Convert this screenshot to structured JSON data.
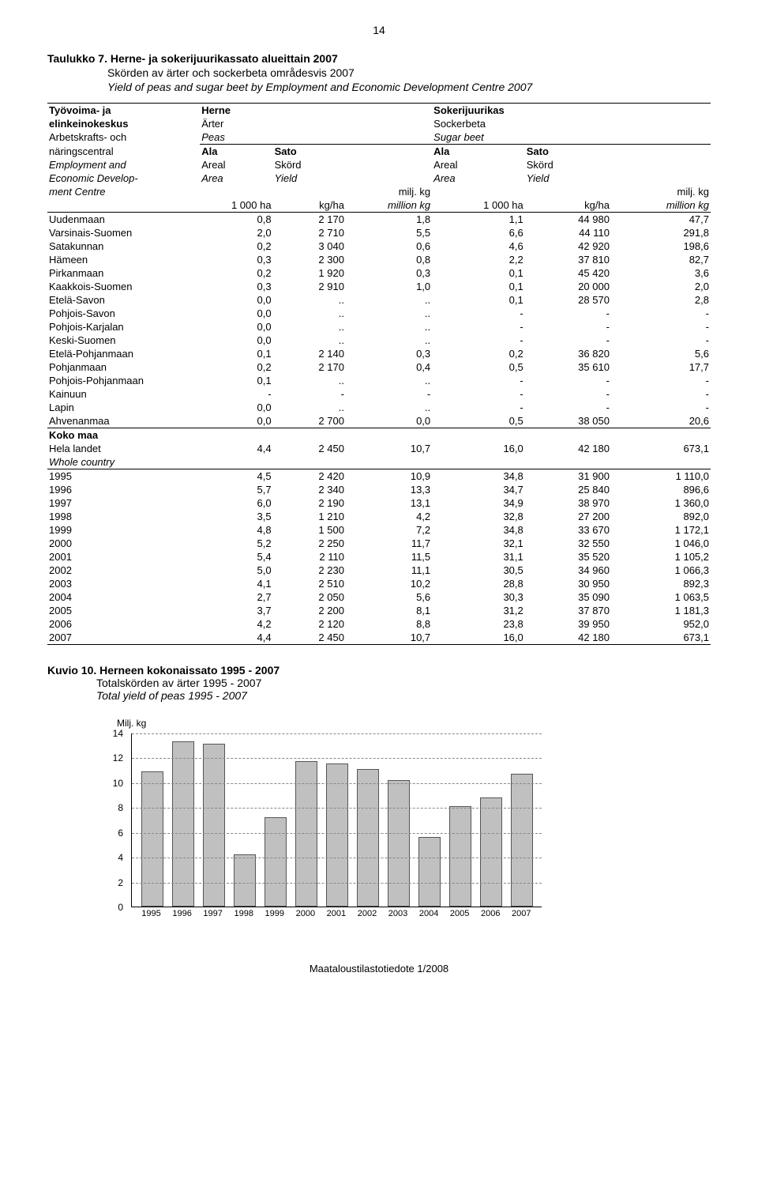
{
  "page_number": "14",
  "table7": {
    "title_bold": "Taulukko 7. Herne- ja sokerijuurikassato alueittain 2007",
    "sub_sv": "Skörden av ärter och sockerbeta områdesvis 2007",
    "sub_en": "Yield of peas and sugar beet by Employment and Economic Development Centre 2007",
    "left_h1_fi": "Työvoima- ja",
    "left_h2_fi": "elinkeinokeskus",
    "left_h1_sv": "Arbetskrafts- och",
    "left_h2_sv": "näringscentral",
    "left_h1_en": "Employment and",
    "left_h2_en": "Economic Develop-",
    "left_h3_en": "ment Centre",
    "herne": "Herne",
    "arter": "Ärter",
    "peas": "Peas",
    "sokerij": "Sokerijuurikas",
    "sockerb": "Sockerbeta",
    "sugarb": "Sugar beet",
    "ala": "Ala",
    "areal": "Areal",
    "area": "Area",
    "sato": "Sato",
    "skord": "Skörd",
    "yield": "Yield",
    "thousand_ha": "1 000 ha",
    "kgha": "kg/ha",
    "miljkg": "milj. kg",
    "millionkg": "million kg",
    "rows": [
      {
        "n": "Uudenmaan",
        "a": "0,8",
        "b": "2 170",
        "c": "1,8",
        "d": "1,1",
        "e": "44 980",
        "f": "47,7"
      },
      {
        "n": "Varsinais-Suomen",
        "a": "2,0",
        "b": "2 710",
        "c": "5,5",
        "d": "6,6",
        "e": "44 110",
        "f": "291,8"
      },
      {
        "n": "Satakunnan",
        "a": "0,2",
        "b": "3 040",
        "c": "0,6",
        "d": "4,6",
        "e": "42 920",
        "f": "198,6"
      },
      {
        "n": "Hämeen",
        "a": "0,3",
        "b": "2 300",
        "c": "0,8",
        "d": "2,2",
        "e": "37 810",
        "f": "82,7"
      },
      {
        "n": "Pirkanmaan",
        "a": "0,2",
        "b": "1 920",
        "c": "0,3",
        "d": "0,1",
        "e": "45 420",
        "f": "3,6"
      },
      {
        "n": "Kaakkois-Suomen",
        "a": "0,3",
        "b": "2 910",
        "c": "1,0",
        "d": "0,1",
        "e": "20 000",
        "f": "2,0"
      },
      {
        "n": "Etelä-Savon",
        "a": "0,0",
        "b": "..",
        "c": "..",
        "d": "0,1",
        "e": "28 570",
        "f": "2,8"
      },
      {
        "n": "Pohjois-Savon",
        "a": "0,0",
        "b": "..",
        "c": "..",
        "d": "-",
        "e": "-",
        "f": "-"
      },
      {
        "n": "Pohjois-Karjalan",
        "a": "0,0",
        "b": "..",
        "c": "..",
        "d": "-",
        "e": "-",
        "f": "-"
      },
      {
        "n": "Keski-Suomen",
        "a": "0,0",
        "b": "..",
        "c": "..",
        "d": "-",
        "e": "-",
        "f": "-"
      },
      {
        "n": "Etelä-Pohjanmaan",
        "a": "0,1",
        "b": "2 140",
        "c": "0,3",
        "d": "0,2",
        "e": "36 820",
        "f": "5,6"
      },
      {
        "n": "Pohjanmaan",
        "a": "0,2",
        "b": "2 170",
        "c": "0,4",
        "d": "0,5",
        "e": "35 610",
        "f": "17,7"
      },
      {
        "n": "Pohjois-Pohjanmaan",
        "a": "0,1",
        "b": "..",
        "c": "..",
        "d": "-",
        "e": "-",
        "f": "-"
      },
      {
        "n": "Kainuun",
        "a": "-",
        "b": "-",
        "c": "-",
        "d": "-",
        "e": "-",
        "f": "-"
      },
      {
        "n": "Lapin",
        "a": "0,0",
        "b": "..",
        "c": "..",
        "d": "-",
        "e": "-",
        "f": "-"
      },
      {
        "n": "Ahvenanmaa",
        "a": "0,0",
        "b": "2 700",
        "c": "0,0",
        "d": "0,5",
        "e": "38 050",
        "f": "20,6"
      }
    ],
    "total_fi": "Koko maa",
    "total_sv": "Hela landet",
    "total_en": "Whole country",
    "total_row": {
      "a": "4,4",
      "b": "2 450",
      "c": "10,7",
      "d": "16,0",
      "e": "42 180",
      "f": "673,1"
    },
    "year_rows": [
      {
        "n": "1995",
        "a": "4,5",
        "b": "2 420",
        "c": "10,9",
        "d": "34,8",
        "e": "31 900",
        "f": "1 110,0"
      },
      {
        "n": "1996",
        "a": "5,7",
        "b": "2 340",
        "c": "13,3",
        "d": "34,7",
        "e": "25 840",
        "f": "896,6"
      },
      {
        "n": "1997",
        "a": "6,0",
        "b": "2 190",
        "c": "13,1",
        "d": "34,9",
        "e": "38 970",
        "f": "1 360,0"
      },
      {
        "n": "1998",
        "a": "3,5",
        "b": "1 210",
        "c": "4,2",
        "d": "32,8",
        "e": "27 200",
        "f": "892,0"
      },
      {
        "n": "1999",
        "a": "4,8",
        "b": "1 500",
        "c": "7,2",
        "d": "34,8",
        "e": "33 670",
        "f": "1 172,1"
      },
      {
        "n": "2000",
        "a": "5,2",
        "b": "2 250",
        "c": "11,7",
        "d": "32,1",
        "e": "32 550",
        "f": "1 046,0"
      },
      {
        "n": "2001",
        "a": "5,4",
        "b": "2 110",
        "c": "11,5",
        "d": "31,1",
        "e": "35 520",
        "f": "1 105,2"
      },
      {
        "n": "2002",
        "a": "5,0",
        "b": "2 230",
        "c": "11,1",
        "d": "30,5",
        "e": "34 960",
        "f": "1 066,3"
      },
      {
        "n": "2003",
        "a": "4,1",
        "b": "2 510",
        "c": "10,2",
        "d": "28,8",
        "e": "30 950",
        "f": "892,3"
      },
      {
        "n": "2004",
        "a": "2,7",
        "b": "2 050",
        "c": "5,6",
        "d": "30,3",
        "e": "35 090",
        "f": "1 063,5"
      },
      {
        "n": "2005",
        "a": "3,7",
        "b": "2 200",
        "c": "8,1",
        "d": "31,2",
        "e": "37 870",
        "f": "1 181,3"
      },
      {
        "n": "2006",
        "a": "4,2",
        "b": "2 120",
        "c": "8,8",
        "d": "23,8",
        "e": "39 950",
        "f": "952,0"
      },
      {
        "n": "2007",
        "a": "4,4",
        "b": "2 450",
        "c": "10,7",
        "d": "16,0",
        "e": "42 180",
        "f": "673,1"
      }
    ]
  },
  "chart": {
    "title_bold": "Kuvio 10. Herneen kokonaissato 1995 - 2007",
    "sub_sv": "Totalskörden av ärter 1995 - 2007",
    "sub_en": "Total yield of peas 1995 - 2007",
    "ylabel": "Milj. kg",
    "type": "bar",
    "ymax": 14,
    "ytick_step": 2,
    "grid_color": "#888888",
    "bar_fill": "#c0c0c0",
    "bar_border": "#555555",
    "background": "#ffffff",
    "categories": [
      "1995",
      "1996",
      "1997",
      "1998",
      "1999",
      "2000",
      "2001",
      "2002",
      "2003",
      "2004",
      "2005",
      "2006",
      "2007"
    ],
    "values": [
      10.9,
      13.3,
      13.1,
      4.2,
      7.2,
      11.7,
      11.5,
      11.1,
      10.2,
      5.6,
      8.1,
      8.8,
      10.7
    ]
  },
  "footer": "Maataloustilastotiedote 1/2008"
}
